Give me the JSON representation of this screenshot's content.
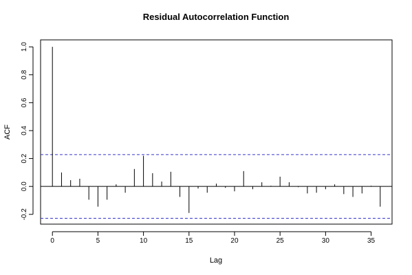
{
  "chart_data": {
    "type": "bar",
    "title": "Residual Autocorrelation Function",
    "xlabel": "Lag",
    "ylabel": "ACF",
    "xlim": [
      -1.3,
      37.3
    ],
    "ylim": [
      -0.27,
      1.05
    ],
    "x_ticks": [
      0,
      5,
      10,
      15,
      20,
      25,
      30,
      35
    ],
    "y_ticks": [
      -0.2,
      0.0,
      0.2,
      0.4,
      0.6,
      0.8,
      1.0
    ],
    "y_tick_labels": [
      "-0.2",
      "0.0",
      "0.2",
      "0.4",
      "0.6",
      "0.8",
      "1.0"
    ],
    "x": [
      0,
      1,
      2,
      3,
      4,
      5,
      6,
      7,
      8,
      9,
      10,
      11,
      12,
      13,
      14,
      15,
      16,
      17,
      18,
      19,
      20,
      21,
      22,
      23,
      24,
      25,
      26,
      27,
      28,
      29,
      30,
      31,
      32,
      33,
      34,
      35,
      36
    ],
    "values": [
      1.0,
      0.1,
      0.045,
      0.055,
      -0.095,
      -0.145,
      -0.095,
      0.015,
      -0.045,
      0.125,
      0.22,
      0.095,
      0.035,
      0.105,
      -0.075,
      -0.19,
      -0.015,
      -0.045,
      0.02,
      -0.01,
      -0.035,
      0.11,
      -0.02,
      0.03,
      0.005,
      0.07,
      0.03,
      -0.005,
      -0.05,
      -0.045,
      -0.02,
      0.015,
      -0.055,
      -0.075,
      -0.05,
      0.005,
      -0.145
    ],
    "confidence_band": 0.228,
    "colors": {
      "bars": "#000000",
      "confidence": "#3333cc",
      "zero_line": "#000000"
    },
    "grid": false
  }
}
